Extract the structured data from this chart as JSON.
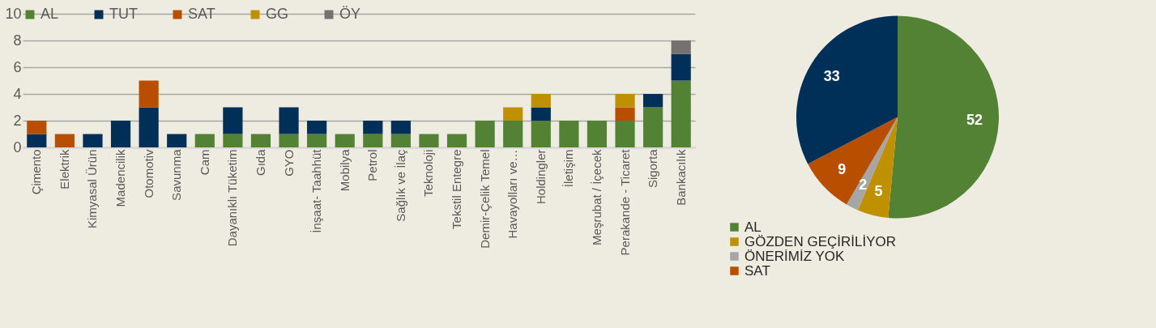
{
  "chart_data": [
    {
      "type": "bar",
      "stacked": true,
      "categories": [
        "Çimento",
        "Elektrik",
        "Kimyasal Ürün",
        "Madencilik",
        "Otomotiv",
        "Savunma",
        "Cam",
        "Dayanıklı Tüketim",
        "Gıda",
        "GYO",
        "İnşaat- Taahhüt",
        "Mobilya",
        "Petrol",
        "Sağlık ve İlaç",
        "Teknoloji",
        "Tekstil Entegre",
        "Demir-Çelik Temel",
        "Havayolları ve…",
        "Holdingler",
        "İletişim",
        "Meşrubat / İçecek",
        "Perakande - Ticaret",
        "Sigorta",
        "Bankacılık"
      ],
      "series": [
        {
          "name": "AL",
          "color": "#548235",
          "values": [
            0,
            0,
            0,
            0,
            0,
            0,
            1,
            1,
            1,
            1,
            1,
            1,
            1,
            1,
            1,
            1,
            2,
            2,
            2,
            2,
            2,
            2,
            3,
            5
          ]
        },
        {
          "name": "TUT",
          "color": "#002f57",
          "values": [
            1,
            0,
            1,
            2,
            3,
            1,
            0,
            2,
            0,
            2,
            1,
            0,
            1,
            1,
            0,
            0,
            0,
            0,
            1,
            0,
            0,
            0,
            1,
            2
          ]
        },
        {
          "name": "SAT",
          "color": "#b84f00",
          "values": [
            1,
            1,
            0,
            0,
            2,
            0,
            0,
            0,
            0,
            0,
            0,
            0,
            0,
            0,
            0,
            0,
            0,
            0,
            0,
            0,
            0,
            1,
            0,
            0
          ]
        },
        {
          "name": "GG",
          "color": "#bf9000",
          "values": [
            0,
            0,
            0,
            0,
            0,
            0,
            0,
            0,
            0,
            0,
            0,
            0,
            0,
            0,
            0,
            0,
            0,
            1,
            1,
            0,
            0,
            1,
            0,
            0
          ]
        },
        {
          "name": "ÖY",
          "color": "#767171",
          "values": [
            0,
            0,
            0,
            0,
            0,
            0,
            0,
            0,
            0,
            0,
            0,
            0,
            0,
            0,
            0,
            0,
            0,
            0,
            0,
            0,
            0,
            0,
            0,
            1
          ]
        }
      ],
      "ylim": [
        0,
        10
      ],
      "yticks": [
        0,
        2,
        4,
        6,
        8,
        10
      ],
      "grid": "y",
      "legend": "top"
    },
    {
      "type": "pie",
      "categories": [
        "AL",
        "GÖZDEN GEÇİRİLİYOR",
        "ÖNERİMİZ YOK",
        "SAT",
        null
      ],
      "values": [
        52,
        5,
        2,
        9,
        33
      ],
      "colors": [
        "#548235",
        "#bf9000",
        "#a6a6a6",
        "#b84f00",
        "#002f57"
      ],
      "data_labels": true,
      "legend": "bottom"
    }
  ]
}
